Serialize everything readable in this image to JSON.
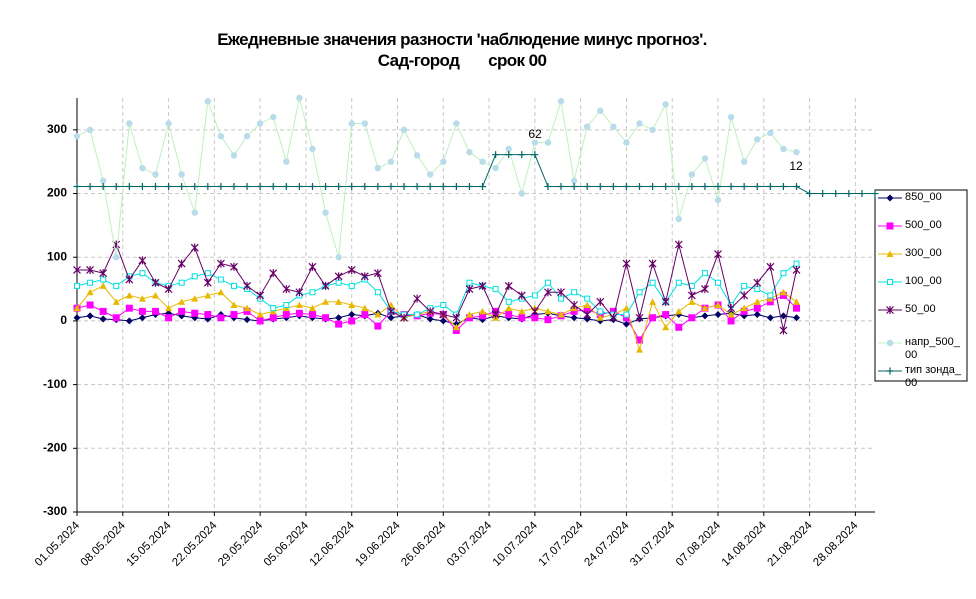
{
  "chart_data": {
    "type": "line",
    "title": "Ежедневные значения разности 'наблюдение минус прогноз'.",
    "subtitle": "Сад-город       срок 00",
    "x": [
      "01.05.2024",
      "03.05.2024",
      "05.05.2024",
      "07.05.2024",
      "09.05.2024",
      "11.05.2024",
      "13.05.2024",
      "15.05.2024",
      "17.05.2024",
      "19.05.2024",
      "21.05.2024",
      "23.05.2024",
      "25.05.2024",
      "27.05.2024",
      "29.05.2024",
      "31.05.2024",
      "02.06.2024",
      "04.06.2024",
      "06.06.2024",
      "08.06.2024",
      "10.06.2024",
      "12.06.2024",
      "14.06.2024",
      "16.06.2024",
      "18.06.2024",
      "20.06.2024",
      "22.06.2024",
      "24.06.2024",
      "26.06.2024",
      "28.06.2024",
      "30.06.2024",
      "02.07.2024",
      "04.07.2024",
      "06.07.2024",
      "08.07.2024",
      "10.07.2024",
      "12.07.2024",
      "14.07.2024",
      "16.07.2024",
      "18.07.2024",
      "20.07.2024",
      "22.07.2024",
      "24.07.2024",
      "26.07.2024",
      "28.07.2024",
      "30.07.2024",
      "01.08.2024",
      "03.08.2024",
      "05.08.2024",
      "07.08.2024",
      "09.08.2024",
      "11.08.2024",
      "13.08.2024",
      "15.08.2024",
      "17.08.2024",
      "19.08.2024",
      "21.08.2024",
      "23.08.2024",
      "25.08.2024",
      "27.08.2024",
      "29.08.2024",
      "31.08.2024"
    ],
    "xlim": [
      "01.05.2024",
      "31.08.2024"
    ],
    "xticks": [
      "01.05.2024",
      "08.05.2024",
      "15.05.2024",
      "22.05.2024",
      "29.05.2024",
      "05.06.2024",
      "12.06.2024",
      "19.06.2024",
      "26.06.2024",
      "03.07.2024",
      "10.07.2024",
      "17.07.2024",
      "24.07.2024",
      "31.07.2024",
      "07.08.2024",
      "14.08.2024",
      "21.08.2024",
      "28.08.2024"
    ],
    "ylim": [
      -300,
      350
    ],
    "yticks": [
      -300,
      -200,
      -100,
      0,
      100,
      200,
      300
    ],
    "grid": true,
    "legend": "right",
    "annotations": [
      "62",
      "12"
    ],
    "series": [
      {
        "name": "850_00",
        "color": "#000066",
        "marker": "diamond",
        "values": [
          5,
          8,
          3,
          2,
          0,
          5,
          10,
          12,
          8,
          5,
          3,
          10,
          5,
          2,
          0,
          3,
          5,
          8,
          5,
          3,
          5,
          10,
          8,
          12,
          5,
          8,
          10,
          3,
          0,
          -5,
          5,
          2,
          8,
          5,
          3,
          10,
          12,
          8,
          5,
          3,
          0,
          2,
          -5,
          3,
          5,
          8,
          10,
          5,
          8,
          10,
          12,
          8,
          10,
          5,
          8,
          5,
          null,
          null,
          null,
          null,
          null,
          null
        ]
      },
      {
        "name": "500_00",
        "color": "#ff00ff",
        "marker": "square",
        "values": [
          20,
          25,
          15,
          5,
          20,
          15,
          15,
          5,
          15,
          12,
          10,
          5,
          10,
          15,
          0,
          5,
          10,
          12,
          10,
          5,
          -5,
          0,
          10,
          -8,
          15,
          10,
          8,
          12,
          10,
          -15,
          5,
          8,
          15,
          10,
          5,
          5,
          2,
          8,
          15,
          18,
          10,
          15,
          5,
          -30,
          5,
          10,
          -10,
          5,
          20,
          25,
          0,
          15,
          20,
          30,
          40,
          20,
          null,
          null,
          null,
          null,
          null,
          null
        ]
      },
      {
        "name": "300_00",
        "color": "#e6b800",
        "marker": "triangle",
        "values": [
          20,
          45,
          55,
          30,
          40,
          35,
          40,
          20,
          30,
          35,
          40,
          45,
          25,
          20,
          10,
          15,
          20,
          25,
          20,
          30,
          30,
          25,
          20,
          10,
          25,
          5,
          10,
          15,
          10,
          -10,
          10,
          15,
          5,
          20,
          15,
          20,
          15,
          10,
          20,
          25,
          5,
          10,
          20,
          -45,
          30,
          -10,
          15,
          30,
          20,
          25,
          10,
          20,
          30,
          35,
          45,
          30,
          null,
          null,
          null,
          null,
          null,
          null
        ]
      },
      {
        "name": "100_00",
        "color": "#00e0e0",
        "marker": "open-square",
        "values": [
          55,
          60,
          65,
          55,
          70,
          75,
          60,
          55,
          60,
          70,
          75,
          65,
          55,
          50,
          35,
          20,
          25,
          40,
          45,
          55,
          60,
          55,
          65,
          45,
          15,
          10,
          10,
          20,
          25,
          10,
          60,
          55,
          50,
          30,
          35,
          40,
          60,
          35,
          45,
          35,
          15,
          10,
          10,
          45,
          60,
          30,
          60,
          55,
          75,
          60,
          25,
          55,
          50,
          40,
          75,
          90,
          null,
          null,
          null,
          null,
          null,
          null
        ]
      },
      {
        "name": "50_00",
        "color": "#660066",
        "marker": "star",
        "values": [
          80,
          80,
          75,
          120,
          65,
          95,
          60,
          50,
          90,
          115,
          60,
          90,
          85,
          55,
          40,
          75,
          50,
          45,
          85,
          55,
          70,
          80,
          70,
          75,
          15,
          5,
          35,
          15,
          10,
          5,
          50,
          55,
          10,
          55,
          40,
          15,
          45,
          45,
          25,
          10,
          30,
          5,
          90,
          5,
          90,
          30,
          120,
          40,
          50,
          105,
          20,
          40,
          60,
          85,
          -15,
          80,
          null,
          null,
          null,
          null,
          null,
          null
        ]
      },
      {
        "name": "напр_500_00",
        "color": "#b8dcea",
        "line_color": "#bff0bf",
        "marker": "circle",
        "values": [
          290,
          300,
          220,
          100,
          310,
          240,
          230,
          310,
          230,
          170,
          345,
          290,
          260,
          290,
          310,
          320,
          250,
          350,
          270,
          170,
          100,
          310,
          310,
          240,
          250,
          300,
          260,
          230,
          250,
          310,
          265,
          250,
          240,
          270,
          200,
          280,
          280,
          345,
          220,
          305,
          330,
          305,
          280,
          310,
          300,
          340,
          160,
          230,
          255,
          190,
          320,
          250,
          285,
          295,
          270,
          265,
          null,
          null,
          null,
          null,
          null,
          null
        ]
      },
      {
        "name": "тип зонда_00",
        "color": "#006666",
        "marker": "plus",
        "values": [
          211,
          211,
          211,
          211,
          211,
          211,
          211,
          211,
          211,
          211,
          211,
          211,
          211,
          211,
          211,
          211,
          211,
          211,
          211,
          211,
          211,
          211,
          211,
          211,
          211,
          211,
          211,
          211,
          211,
          211,
          211,
          211,
          261,
          261,
          261,
          261,
          211,
          211,
          211,
          211,
          211,
          211,
          211,
          211,
          211,
          211,
          211,
          211,
          211,
          211,
          211,
          211,
          211,
          211,
          211,
          211,
          200,
          200,
          200,
          200,
          200,
          200
        ]
      }
    ]
  }
}
